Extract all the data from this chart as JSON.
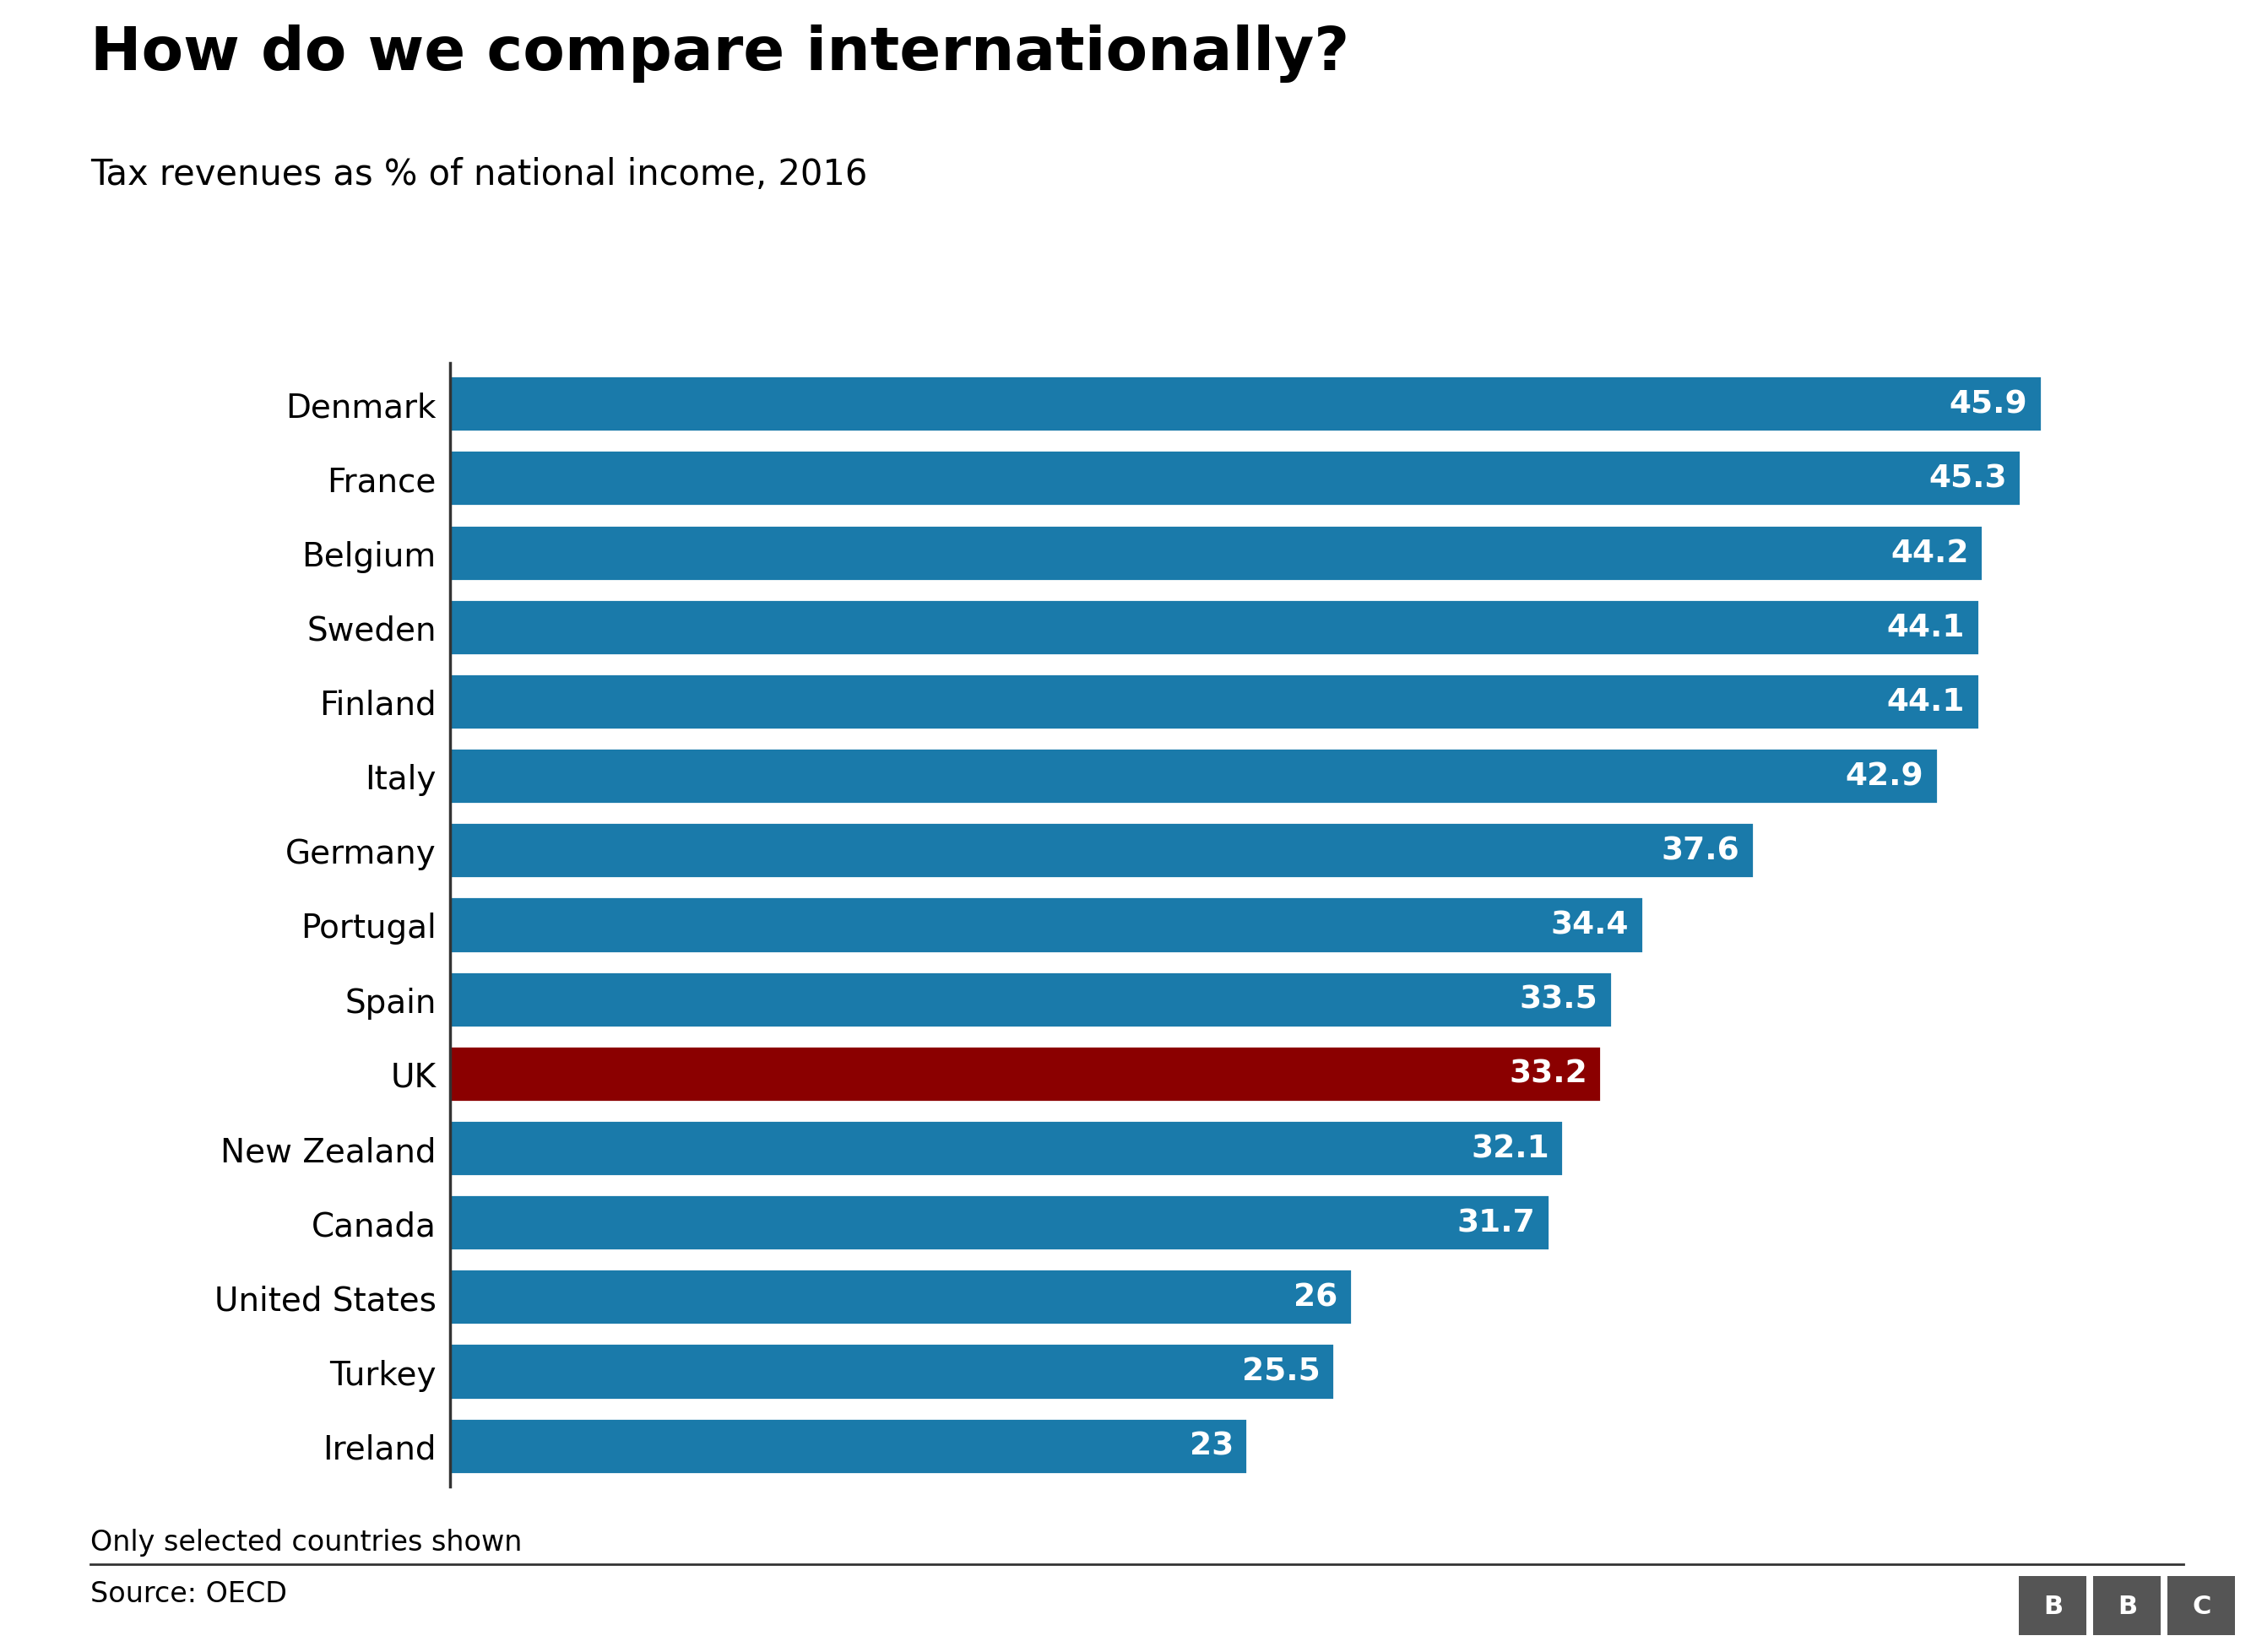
{
  "title": "How do we compare internationally?",
  "subtitle": "Tax revenues as % of national income, 2016",
  "footnote": "Only selected countries shown",
  "source": "Source: OECD",
  "countries": [
    "Denmark",
    "France",
    "Belgium",
    "Sweden",
    "Finland",
    "Italy",
    "Germany",
    "Portugal",
    "Spain",
    "UK",
    "New Zealand",
    "Canada",
    "United States",
    "Turkey",
    "Ireland"
  ],
  "values": [
    45.9,
    45.3,
    44.2,
    44.1,
    44.1,
    42.9,
    37.6,
    34.4,
    33.5,
    33.2,
    32.1,
    31.7,
    26,
    25.5,
    23
  ],
  "bar_color_default": "#1a7aaa",
  "bar_color_highlight": "#8b0000",
  "highlight_country": "UK",
  "bg_color": "#ffffff",
  "title_fontsize": 52,
  "subtitle_fontsize": 30,
  "label_fontsize": 28,
  "value_fontsize": 27,
  "footnote_fontsize": 24,
  "source_fontsize": 24,
  "xlim": [
    0,
    50
  ]
}
